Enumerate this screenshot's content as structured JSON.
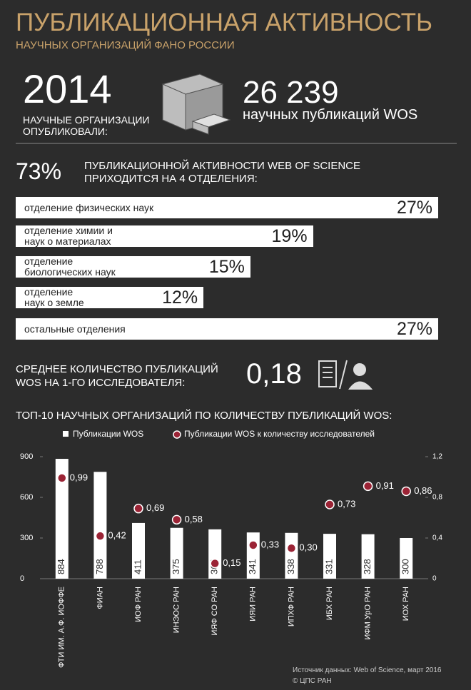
{
  "header": {
    "title": "ПУБЛИКАЦИОННАЯ АКТИВНОСТЬ",
    "subtitle": "НАУЧНЫХ ОРГАНИЗАЦИЙ ФАНО РОССИИ"
  },
  "summary": {
    "year": "2014",
    "caption": "НАУЧНЫЕ ОРГАНИЗАЦИИ\nОПУБЛИКОВАЛИ:",
    "count": "26 239",
    "count_label": "научных публикаций WOS",
    "share": "73%",
    "share_text": "ПУБЛИКАЦИОННОЙ АКТИВНОСТИ WEB OF SCIENCE\nПРИХОДИТСЯ НА 4 ОТДЕЛЕНИЯ:",
    "average_text": "СРЕДНЕЕ КОЛИЧЕСТВО ПУБЛИКАЦИЙ\nWOS НА 1-ГО ИССЛЕДОВАТЕЛЯ:",
    "average": "0,18"
  },
  "chart_data": [
    {
      "type": "hbar",
      "color": "#ffffff",
      "categories": [
        "отделение физических наук",
        "отделение химии и\nнаук о материалах",
        "отделение\nбиологических наук",
        "отделение\nнаук о земле",
        "остальные отделения"
      ],
      "values": [
        27,
        19,
        15,
        12,
        27
      ],
      "value_labels": [
        "27%",
        "19%",
        "15%",
        "12%",
        "27%"
      ]
    },
    {
      "type": "combo",
      "title": "ТОП-10 НАУЧНЫХ ОРГАНИЗАЦИЙ ПО КОЛИЧЕСТВУ ПУБЛИКАЦИЙ WOS:",
      "categories": [
        "ФТИ ИМ. А.Ф. ИОФФЕ",
        "ФИАН",
        "ИОФ РАН",
        "ИНЭОС РАН",
        "ИЯФ СО РАН",
        "ИЯИ РАН",
        "ИПХФ РАН",
        "ИБХ РАН",
        "ИФМ УрО РАН",
        "ИОХ РАН"
      ],
      "ylim": [
        0,
        900
      ],
      "yticks": [
        0,
        300,
        600,
        900
      ],
      "y2lim": [
        0,
        1.2
      ],
      "y2ticks": [
        0,
        {
          "value": 0.4,
          "label": "0,4"
        },
        {
          "value": 0.8,
          "label": "0,8"
        },
        {
          "value": 1.2,
          "label": "1,2"
        }
      ],
      "series": [
        {
          "name": "Публикации WOS",
          "type": "bar",
          "color": "#ffffff",
          "values": [
            884,
            788,
            411,
            375,
            364,
            341,
            338,
            331,
            328,
            300
          ]
        },
        {
          "name": "Публикации WOS к количеству исследователей",
          "type": "scatter",
          "axis": "y2",
          "color": "#9b2335",
          "values": [
            0.99,
            0.42,
            0.69,
            0.58,
            0.15,
            0.33,
            0.3,
            0.73,
            0.91,
            0.86
          ],
          "value_labels": [
            "0,99",
            "0,42",
            "0,69",
            "0,58",
            "0,15",
            "0,33",
            "0,30",
            "0,73",
            "0,91",
            "0,86"
          ]
        }
      ]
    }
  ],
  "footer": {
    "source": "Источник данных: Web of Science, март 2016",
    "copyright": "© ЦПС РАН"
  }
}
